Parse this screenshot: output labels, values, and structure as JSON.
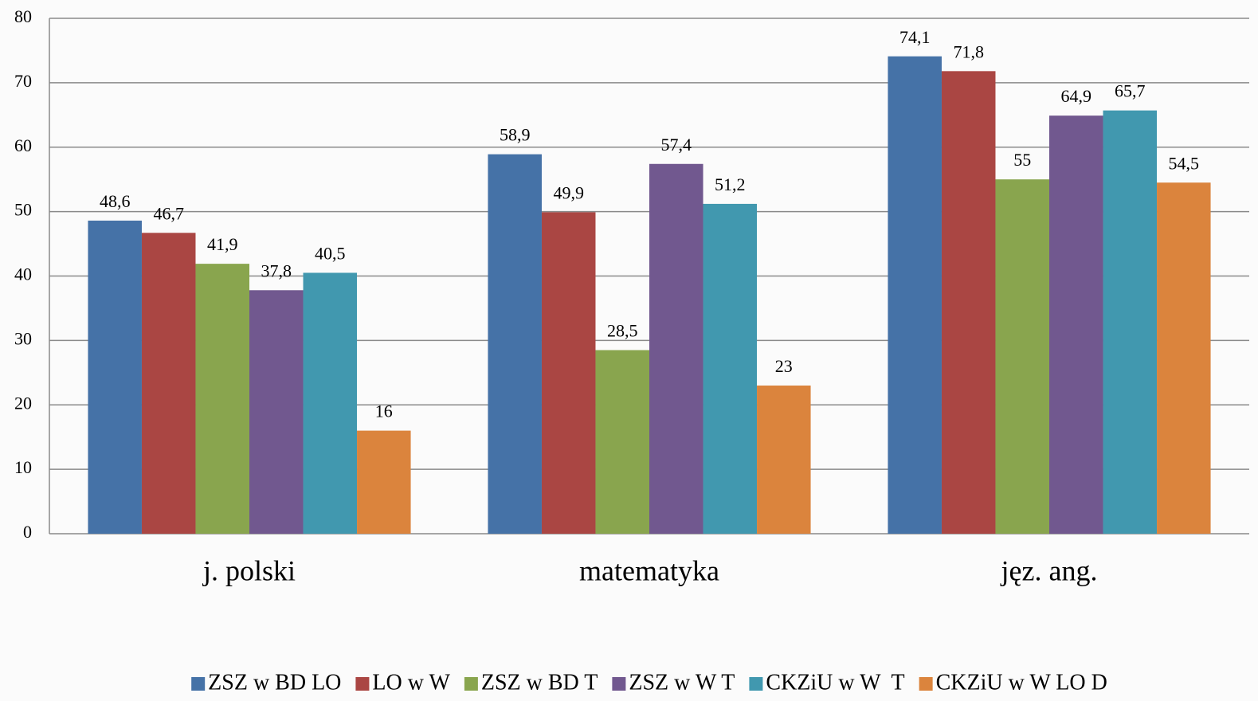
{
  "chart_data": {
    "type": "bar",
    "categories": [
      "j. polski",
      "matematyka",
      "jęz. ang."
    ],
    "series": [
      {
        "name": "ZSZ w BD LO",
        "color": "#4572a7",
        "values": [
          48.6,
          58.9,
          74.1
        ],
        "value_labels": [
          "48,6",
          "58,9",
          "74,1"
        ]
      },
      {
        "name": "LO w W",
        "color": "#aa4643",
        "values": [
          46.7,
          49.9,
          71.8
        ],
        "value_labels": [
          "46,7",
          "49,9",
          "71,8"
        ]
      },
      {
        "name": "ZSZ w BD T",
        "color": "#89a54e",
        "values": [
          41.9,
          28.5,
          55
        ],
        "value_labels": [
          "41,9",
          "28,5",
          "55"
        ]
      },
      {
        "name": "ZSZ w W T",
        "color": "#71588f",
        "values": [
          37.8,
          57.4,
          64.9
        ],
        "value_labels": [
          "37,8",
          "57,4",
          "64,9"
        ]
      },
      {
        "name": "CKZiU w W  T",
        "color": "#4198af",
        "values": [
          40.5,
          51.2,
          65.7
        ],
        "value_labels": [
          "40,5",
          "51,2",
          "65,7"
        ]
      },
      {
        "name": "CKZiU w W LO D",
        "color": "#db843d",
        "values": [
          16,
          23,
          54.5
        ],
        "value_labels": [
          "16",
          "23",
          "54,5"
        ]
      }
    ],
    "ylim": [
      0,
      80
    ],
    "yticks": [
      0,
      10,
      20,
      30,
      40,
      50,
      60,
      70,
      80
    ],
    "grid": true,
    "legend": "bottom"
  }
}
